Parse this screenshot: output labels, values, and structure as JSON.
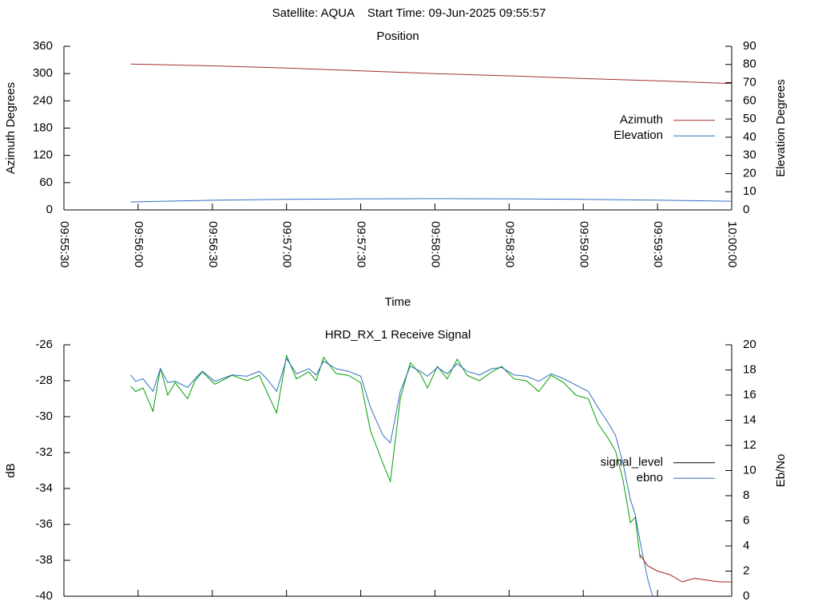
{
  "title": "Satellite: AQUA    Start Time: 09-Jun-2025 09:55:57",
  "chart_data": [
    {
      "type": "line",
      "title": "Position",
      "xlabel": "Time",
      "ylabel": "Azimuth Degrees",
      "y2label": "Elevation Degrees",
      "xlim": [
        "09:55:30",
        "10:00:00"
      ],
      "xticks": [
        "09:55:30",
        "09:56:00",
        "09:56:30",
        "09:57:00",
        "09:57:30",
        "09:58:00",
        "09:58:30",
        "09:59:00",
        "09:59:30",
        "10:00:00"
      ],
      "ylim": [
        0,
        360
      ],
      "yticks": [
        0,
        60,
        120,
        180,
        240,
        300,
        360
      ],
      "y2lim": [
        0,
        90
      ],
      "y2ticks": [
        0,
        10,
        20,
        30,
        40,
        50,
        60,
        70,
        80,
        90
      ],
      "legend": "right",
      "series": [
        {
          "name": "Azimuth",
          "color": "#a03030",
          "x": [
            "09:55:57",
            "09:56:30",
            "09:57:00",
            "09:57:30",
            "09:58:00",
            "09:58:30",
            "09:59:00",
            "09:59:30",
            "10:00:00"
          ],
          "values": [
            321,
            317,
            312,
            306,
            300,
            295,
            289,
            284,
            278
          ]
        },
        {
          "name": "Elevation",
          "color": "#3070c0",
          "axis": "y2",
          "x": [
            "09:55:57",
            "09:56:30",
            "09:57:00",
            "09:57:30",
            "09:58:00",
            "09:58:30",
            "09:59:00",
            "09:59:30",
            "10:00:00"
          ],
          "values": [
            4.4,
            5.3,
            5.8,
            6.1,
            6.2,
            6.1,
            5.8,
            5.4,
            4.8
          ]
        }
      ]
    },
    {
      "type": "line",
      "title": "HRD_RX_1 Receive Signal",
      "ylabel": "dB",
      "y2label": "Eb/No",
      "xlim": [
        "09:55:30",
        "10:00:00"
      ],
      "xticks": [
        "09:55:30",
        "09:56:00",
        "09:56:30",
        "09:57:00",
        "09:57:30",
        "09:58:00",
        "09:58:30",
        "09:59:00",
        "09:59:30",
        "10:00:00"
      ],
      "xtick_labels": false,
      "ylim": [
        -40,
        -26
      ],
      "yticks": [
        -40,
        -38,
        -36,
        -34,
        -32,
        -30,
        -28,
        -26
      ],
      "y2lim": [
        0,
        20
      ],
      "y2ticks": [
        0,
        2,
        4,
        6,
        8,
        10,
        12,
        14,
        16,
        18,
        20
      ],
      "legend": "right",
      "series": [
        {
          "name": "signal_level",
          "color": "#00a000",
          "key_color": "#000000",
          "x": [
            "09:55:57",
            "09:55:59",
            "09:56:02",
            "09:56:06",
            "09:56:09",
            "09:56:12",
            "09:56:15",
            "09:56:20",
            "09:56:23",
            "09:56:26",
            "09:56:31",
            "09:56:38",
            "09:56:44",
            "09:56:49",
            "09:56:52",
            "09:56:56",
            "09:57:00",
            "09:57:04",
            "09:57:09",
            "09:57:12",
            "09:57:15",
            "09:57:20",
            "09:57:25",
            "09:57:30",
            "09:57:34",
            "09:57:39",
            "09:57:42",
            "09:57:46",
            "09:57:50",
            "09:57:54",
            "09:57:57",
            "09:58:01",
            "09:58:05",
            "09:58:09",
            "09:58:13",
            "09:58:18",
            "09:58:23",
            "09:58:27",
            "09:58:32",
            "09:58:37",
            "09:58:42",
            "09:58:47",
            "09:58:52",
            "09:58:57",
            "09:59:02",
            "09:59:06",
            "09:59:10",
            "09:59:13",
            "09:59:16",
            "09:59:19",
            "09:59:21",
            "09:59:23"
          ],
          "values": [
            -28.3,
            -28.6,
            -28.4,
            -29.7,
            -27.3,
            -28.8,
            -28.1,
            -29.0,
            -28.0,
            -27.5,
            -28.2,
            -27.7,
            -28.0,
            -27.7,
            -28.6,
            -29.8,
            -26.6,
            -27.9,
            -27.5,
            -28.0,
            -26.7,
            -27.6,
            -27.7,
            -28.1,
            -30.8,
            -32.6,
            -33.6,
            -29.0,
            -27.0,
            -27.6,
            -28.4,
            -27.2,
            -27.9,
            -26.8,
            -27.7,
            -28.0,
            -27.5,
            -27.2,
            -27.9,
            -28.0,
            -28.6,
            -27.7,
            -28.1,
            -28.8,
            -29.0,
            -30.4,
            -31.2,
            -31.9,
            -33.5,
            -35.9,
            -35.6,
            -37.9
          ]
        },
        {
          "name": "ebno",
          "color": "#3070c0",
          "axis": "y2",
          "x": [
            "09:55:57",
            "09:55:59",
            "09:56:02",
            "09:56:06",
            "09:56:09",
            "09:56:12",
            "09:56:15",
            "09:56:20",
            "09:56:23",
            "09:56:26",
            "09:56:31",
            "09:56:38",
            "09:56:44",
            "09:56:49",
            "09:56:52",
            "09:56:56",
            "09:57:00",
            "09:57:04",
            "09:57:09",
            "09:57:12",
            "09:57:15",
            "09:57:20",
            "09:57:25",
            "09:57:30",
            "09:57:34",
            "09:57:39",
            "09:57:42",
            "09:57:46",
            "09:57:50",
            "09:57:54",
            "09:57:57",
            "09:58:01",
            "09:58:05",
            "09:58:09",
            "09:58:13",
            "09:58:18",
            "09:58:23",
            "09:58:27",
            "09:58:32",
            "09:58:37",
            "09:58:42",
            "09:58:47",
            "09:58:52",
            "09:58:57",
            "09:59:02",
            "09:59:06",
            "09:59:10",
            "09:59:13",
            "09:59:16",
            "09:59:19",
            "09:59:21",
            "09:59:23",
            "09:59:26",
            "09:59:28"
          ],
          "values": [
            17.6,
            17.1,
            17.3,
            16.3,
            18.1,
            17.0,
            17.1,
            16.6,
            17.3,
            17.9,
            17.1,
            17.6,
            17.5,
            17.9,
            17.3,
            16.3,
            18.9,
            17.7,
            18.1,
            17.6,
            18.7,
            18.1,
            17.9,
            17.5,
            15.0,
            12.8,
            12.2,
            16.3,
            18.3,
            17.9,
            17.5,
            18.2,
            17.7,
            18.5,
            17.9,
            17.6,
            18.1,
            18.2,
            17.6,
            17.5,
            17.1,
            17.7,
            17.3,
            16.8,
            16.3,
            15.0,
            13.8,
            12.8,
            10.6,
            7.7,
            6.5,
            4.3,
            1.4,
            0
          ]
        },
        {
          "color": "#a02020",
          "x": [
            "09:59:23",
            "09:59:26",
            "09:59:30",
            "09:59:35",
            "09:59:40",
            "09:59:45",
            "09:59:50",
            "09:59:55",
            "10:00:00"
          ],
          "values": [
            -37.7,
            -38.3,
            -38.6,
            -38.8,
            -39.2,
            -39.0,
            -39.1,
            -39.2,
            -39.2
          ]
        }
      ]
    }
  ]
}
